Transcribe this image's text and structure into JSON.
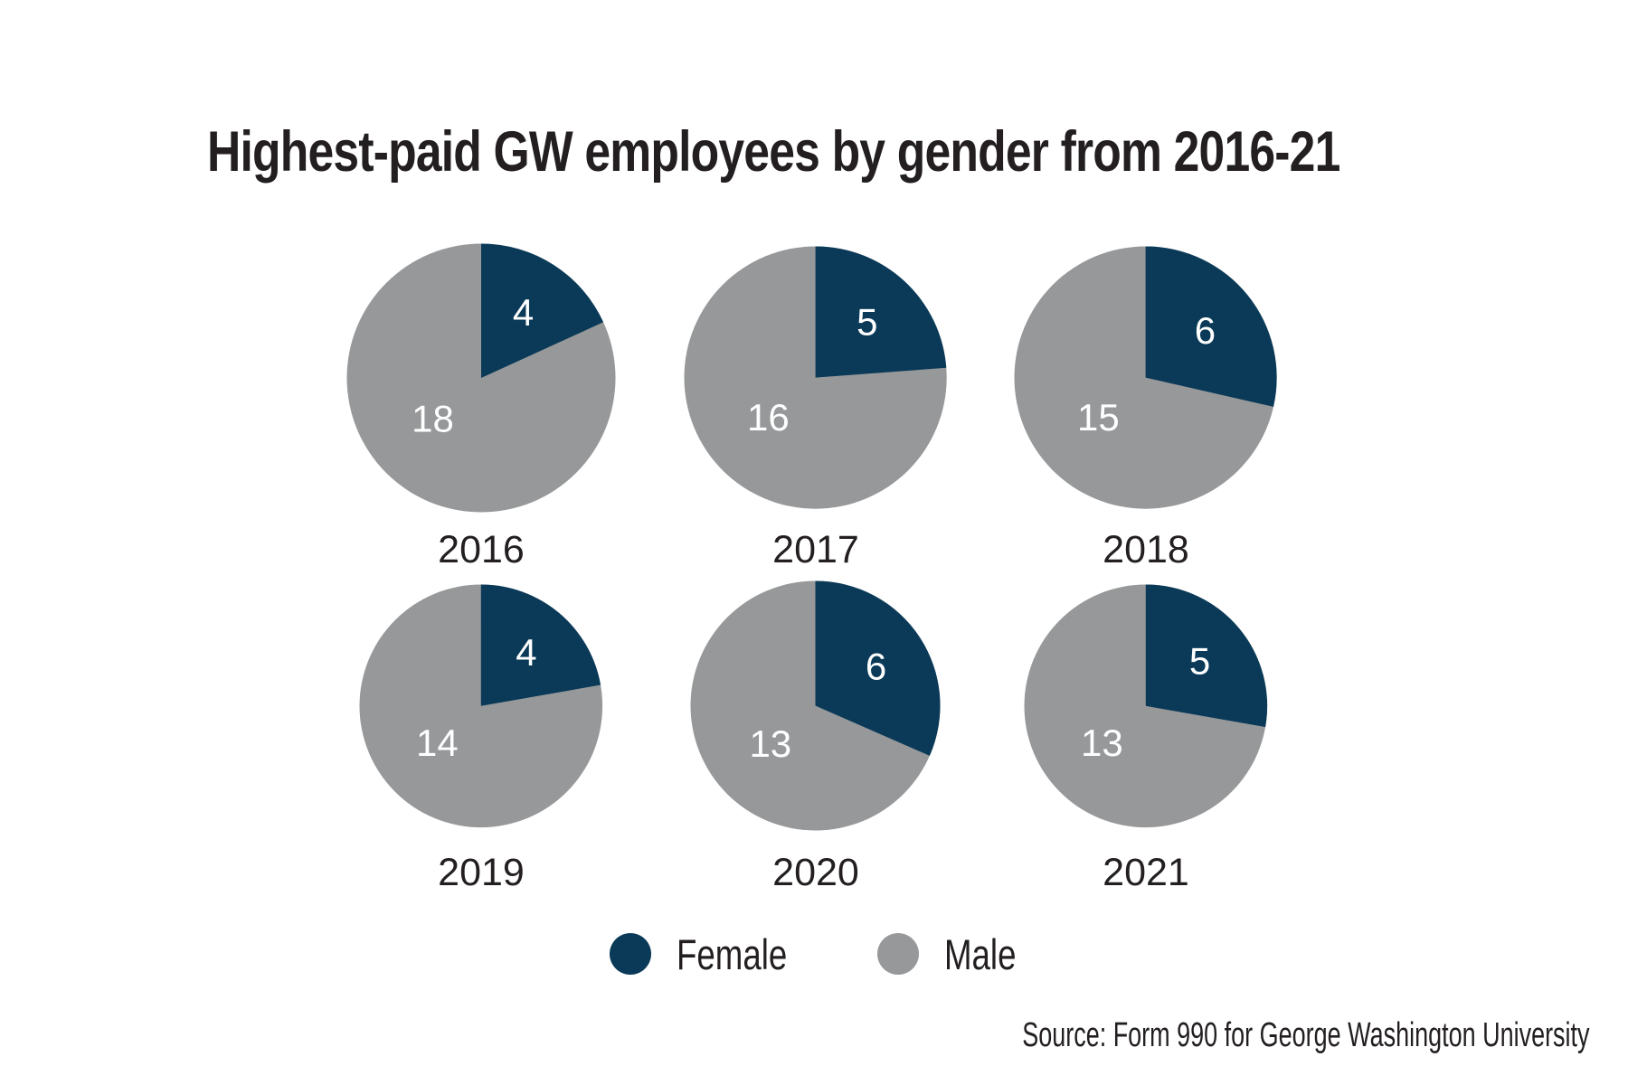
{
  "chart_data": {
    "type": "pie",
    "title": "Highest-paid GW employees by gender from 2016-21",
    "source": "Source: Form 990 for George Washington University",
    "series_labels": [
      "Female",
      "Male"
    ],
    "colors": {
      "female": "#0a3a58",
      "male": "#96989a",
      "slice_label": "#ffffff",
      "text": "#231f20"
    },
    "legend_position": "bottom",
    "legend": [
      {
        "label": "Female",
        "color": "#0a3a58"
      },
      {
        "label": "Male",
        "color": "#96989a"
      }
    ],
    "pies": [
      {
        "year": "2016",
        "female": 4,
        "male": 18
      },
      {
        "year": "2017",
        "female": 5,
        "male": 16
      },
      {
        "year": "2018",
        "female": 6,
        "male": 15
      },
      {
        "year": "2019",
        "female": 4,
        "male": 14
      },
      {
        "year": "2020",
        "female": 6,
        "male": 13
      },
      {
        "year": "2021",
        "female": 5,
        "male": 13
      }
    ],
    "notes": "pie area proportional to yearly total; female slice starts at 12 o'clock sweeping clockwise"
  }
}
